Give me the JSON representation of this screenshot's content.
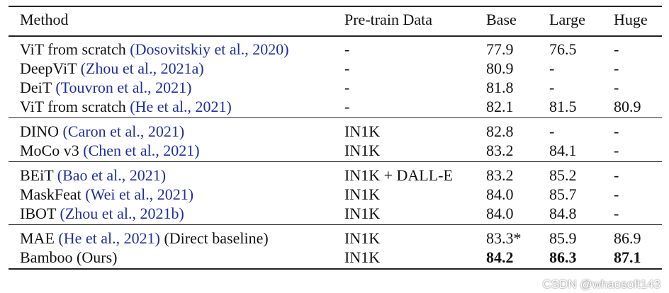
{
  "table": {
    "header": [
      "Method",
      "Pre-train Data",
      "Base",
      "Large",
      "Huge"
    ],
    "groups": [
      [
        {
          "method": "ViT from scratch",
          "cite": "(Dosovitskiy et al., 2020)",
          "data": "-",
          "scores": [
            "77.9",
            "76.5",
            "-"
          ]
        },
        {
          "method": "DeepViT",
          "cite": "(Zhou et al., 2021a)",
          "data": "-",
          "scores": [
            "80.9",
            "-",
            "-"
          ]
        },
        {
          "method": "DeiT",
          "cite": "(Touvron et al., 2021)",
          "data": "-",
          "scores": [
            "81.8",
            "-",
            "-"
          ]
        },
        {
          "method": "ViT from scratch",
          "cite": "(He et al., 2021)",
          "data": "-",
          "scores": [
            "82.1",
            "81.5",
            "80.9"
          ]
        }
      ],
      [
        {
          "method": "DINO",
          "cite": "(Caron et al., 2021)",
          "data": "IN1K",
          "scores": [
            "82.8",
            "-",
            "-"
          ]
        },
        {
          "method": "MoCo v3",
          "cite": "(Chen et al., 2021)",
          "data": "IN1K",
          "scores": [
            "83.2",
            "84.1",
            "-"
          ]
        }
      ],
      [
        {
          "method": "BEiT",
          "cite": "(Bao et al., 2021)",
          "data": "IN1K + DALL-E",
          "scores": [
            "83.2",
            "85.2",
            "-"
          ]
        },
        {
          "method": "MaskFeat",
          "cite": "(Wei et al., 2021)",
          "data": "IN1K",
          "scores": [
            "84.0",
            "85.7",
            "-"
          ]
        },
        {
          "method": "IBOT",
          "cite": "(Zhou et al., 2021b)",
          "data": "IN1K",
          "scores": [
            "84.0",
            "84.8",
            "-"
          ]
        }
      ],
      [
        {
          "method": "MAE",
          "cite": "(He et al., 2021)",
          "note": "(Direct baseline)",
          "data": "IN1K",
          "scores": [
            "83.3*",
            "85.9",
            "86.9"
          ]
        },
        {
          "method": "Bamboo (Ours)",
          "data": "IN1K",
          "scores": [
            "84.2",
            "86.3",
            "87.1"
          ],
          "bold": true
        }
      ]
    ]
  },
  "watermark": "CSDN @whaosoft143"
}
